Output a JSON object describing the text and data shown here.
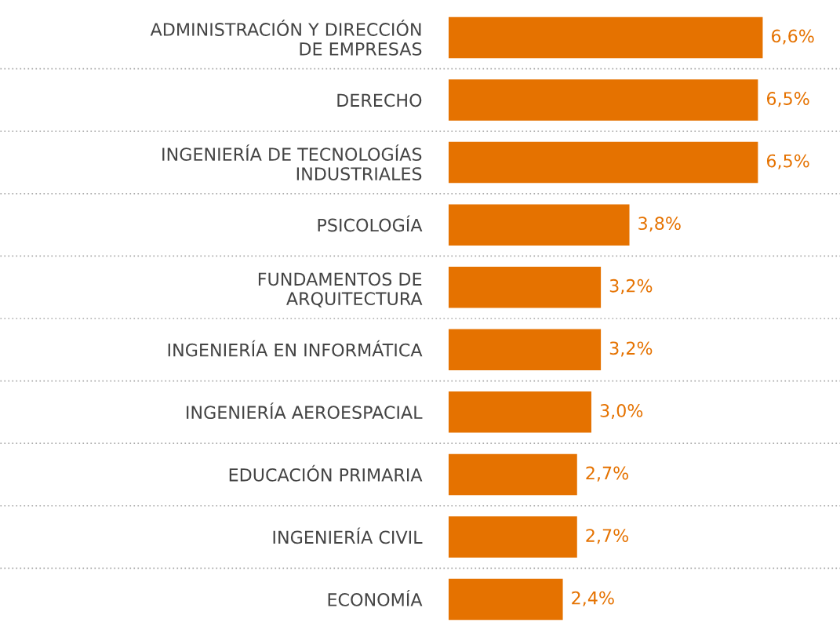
{
  "chart_data": {
    "type": "bar",
    "orientation": "horizontal",
    "categories": [
      "ADMINISTRACIÓN Y DIRECCIÓN DE EMPRESAS",
      "DERECHO",
      "INGENIERÍA DE TECNOLOGÍAS INDUSTRIALES",
      "PSICOLOGÍA",
      "FUNDAMENTOS DE ARQUITECTURA",
      "INGENIERÍA EN INFORMÁTICA",
      "INGENIERÍA AEROESPACIAL",
      "EDUCACIÓN PRIMARIA",
      "INGENIERÍA CIVIL",
      "ECONOMÍA"
    ],
    "values": [
      6.6,
      6.5,
      6.5,
      3.8,
      3.2,
      3.2,
      3.0,
      2.7,
      2.7,
      2.4
    ],
    "value_labels": [
      "6,6%",
      "6,5%",
      "6,5%",
      "3,8%",
      "3,2%",
      "3,2%",
      "3,0%",
      "2,7%",
      "2,7%",
      "2,4%"
    ],
    "color": "#e57200"
  }
}
